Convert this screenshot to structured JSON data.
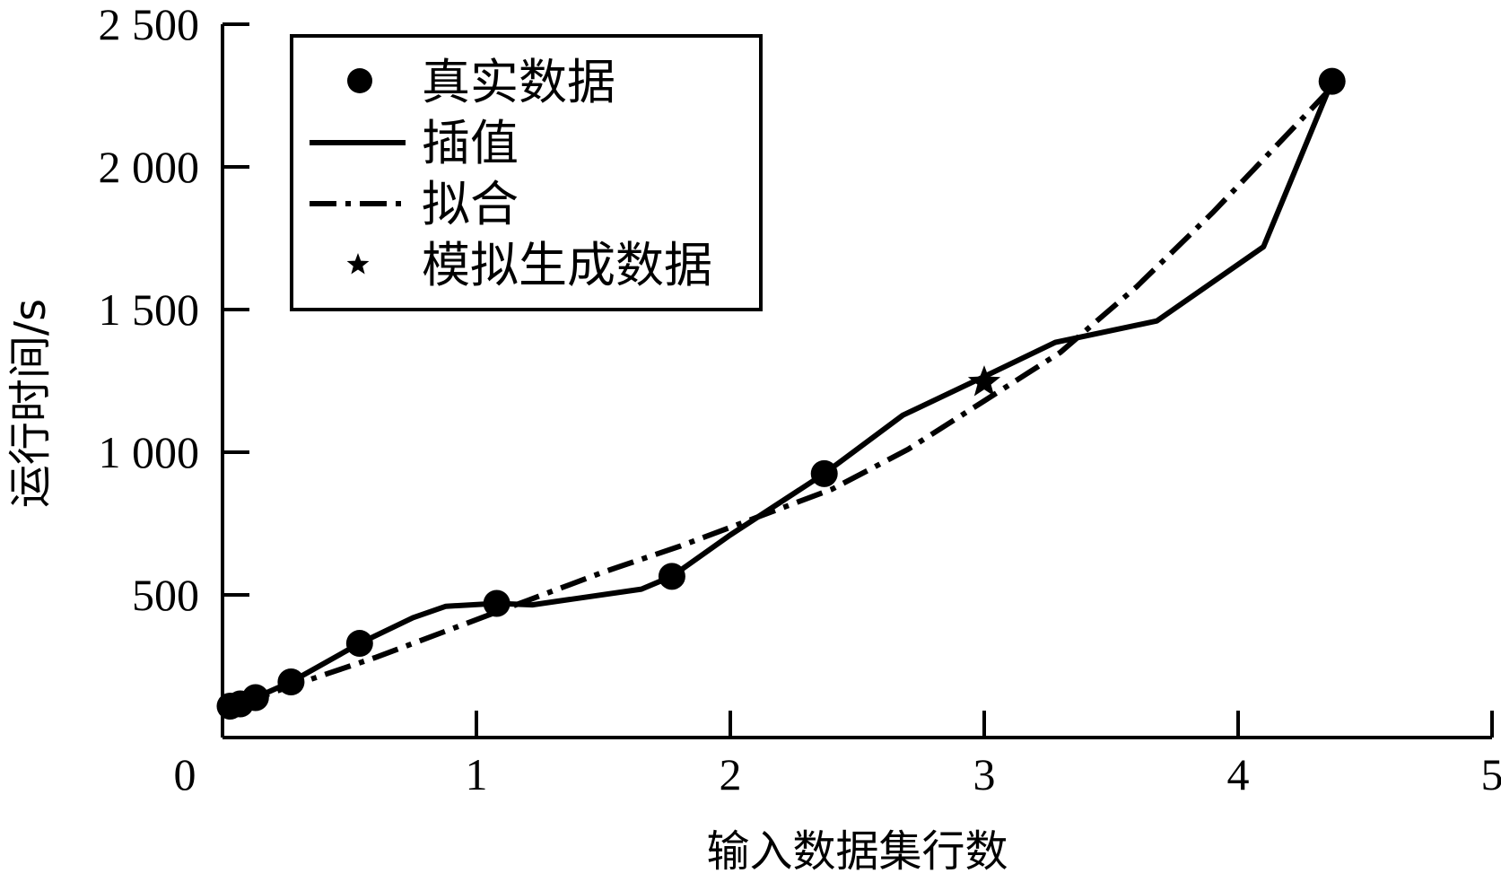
{
  "chart_data": {
    "type": "line",
    "xlabel": "输入数据集行数",
    "ylabel": "运行时间/s",
    "xlim": [
      0,
      5
    ],
    "ylim": [
      0,
      2500
    ],
    "xticks": [
      0,
      1,
      2,
      3,
      4,
      5
    ],
    "xtick_labels": [
      "0",
      "1",
      "2",
      "3",
      "4",
      "5"
    ],
    "yticks": [
      500,
      1000,
      1500,
      2000,
      2500
    ],
    "ytick_labels": [
      "500",
      "1 000",
      "1 500",
      "2 000",
      "2 500"
    ],
    "grid": false,
    "legend_position": "top-left",
    "series": [
      {
        "name": "真实数据",
        "kind": "marker-circle",
        "color": "#000000",
        "x": [
          0.03,
          0.07,
          0.13,
          0.27,
          0.54,
          1.08,
          1.77,
          2.37,
          4.37
        ],
        "y": [
          110,
          118,
          140,
          195,
          330,
          470,
          565,
          925,
          2300
        ]
      },
      {
        "name": "插值",
        "kind": "line-solid",
        "color": "#000000",
        "x": [
          0.03,
          0.07,
          0.13,
          0.27,
          0.54,
          0.75,
          0.88,
          1.08,
          1.22,
          1.65,
          1.77,
          2.0,
          2.37,
          2.68,
          3.0,
          3.28,
          3.68,
          4.1,
          4.37
        ],
        "y": [
          110,
          118,
          140,
          195,
          330,
          420,
          460,
          470,
          465,
          520,
          565,
          710,
          925,
          1130,
          1265,
          1385,
          1460,
          1720,
          2300
        ]
      },
      {
        "name": "拟合",
        "kind": "line-dashdot",
        "color": "#000000",
        "x": [
          0.03,
          0.3,
          0.6,
          0.9,
          1.2,
          1.5,
          1.8,
          2.1,
          2.4,
          2.7,
          3.0,
          3.3,
          3.6,
          3.9,
          4.2,
          4.37
        ],
        "y": [
          105,
          190,
          280,
          380,
          480,
          580,
          670,
          770,
          870,
          1010,
          1180,
          1350,
          1580,
          1840,
          2120,
          2280
        ]
      },
      {
        "name": "模拟生成数据",
        "kind": "marker-star",
        "color": "#000000",
        "x": [
          3.0
        ],
        "y": [
          1245
        ]
      }
    ]
  }
}
